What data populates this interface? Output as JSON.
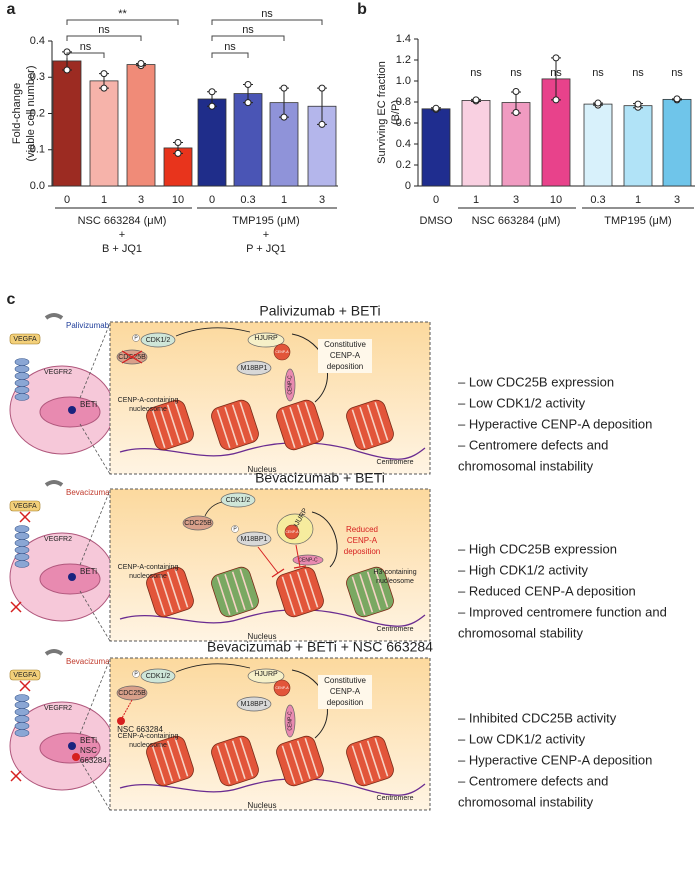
{
  "chart_data": [
    {
      "type": "bar",
      "label": "a",
      "ylabel": [
        "Fold-change",
        "(viable cell number)"
      ],
      "categories": [
        "0",
        "1",
        "3",
        "10",
        "0",
        "0.3",
        "1",
        "3"
      ],
      "values": [
        0.345,
        0.29,
        0.335,
        0.105,
        0.24,
        0.255,
        0.23,
        0.22
      ],
      "errors": [
        0.025,
        0.02,
        0.003,
        0.015,
        0.02,
        0.025,
        0.04,
        0.05
      ],
      "points": [
        [
          0.32,
          0.37
        ],
        [
          0.27,
          0.31
        ],
        [
          0.332,
          0.338
        ],
        [
          0.09,
          0.12
        ],
        [
          0.22,
          0.26
        ],
        [
          0.23,
          0.28
        ],
        [
          0.19,
          0.27
        ],
        [
          0.17,
          0.27
        ]
      ],
      "colors": [
        "#9c2b22",
        "#f6b3aa",
        "#f08b78",
        "#e8341c",
        "#1f2d8a",
        "#4a55b5",
        "#8f93d9",
        "#b4b6eb"
      ],
      "ylim": [
        0,
        0.4
      ],
      "yticks": [
        {
          "value": 0,
          "label": "0.0"
        },
        0.1,
        0.2,
        0.3,
        0.4
      ],
      "annotations": [
        "**",
        "ns",
        "ns",
        "ns",
        "ns",
        "ns"
      ],
      "groups": [
        [
          "NSC 663284 (μM)",
          "+",
          "B + JQ1"
        ],
        [
          "TMP195 (μM)",
          "+",
          "P + JQ1"
        ]
      ]
    },
    {
      "type": "bar",
      "label": "b",
      "ylabel": [
        "Surviving EC fraction",
        "(B/P)"
      ],
      "categories": [
        "0",
        "1",
        "3",
        "10",
        "0.3",
        "1",
        "3"
      ],
      "values": [
        0.735,
        0.815,
        0.795,
        1.02,
        0.78,
        0.765,
        0.825
      ],
      "errors": [
        0.01,
        0.01,
        0.1,
        0.2,
        0.01,
        0.02,
        0.005
      ],
      "points": [
        [
          0.73,
          0.74
        ],
        [
          0.81,
          0.82
        ],
        [
          0.7,
          0.9
        ],
        [
          0.82,
          1.22
        ],
        [
          0.77,
          0.79
        ],
        [
          0.75,
          0.78
        ],
        [
          0.82,
          0.83
        ]
      ],
      "colors": [
        "#1f2d8f",
        "#f9d0e1",
        "#f09bc1",
        "#e8428b",
        "#d8f1fb",
        "#b1e3f7",
        "#6fc5ea"
      ],
      "ylim": [
        0,
        1.4
      ],
      "yticks": [
        0,
        0.2,
        0.4,
        0.6,
        0.8,
        {
          "value": 1,
          "label": "1.0"
        },
        1.2,
        1.4
      ],
      "annotations": [
        "ns",
        "ns",
        "ns",
        "ns",
        "ns",
        "ns"
      ],
      "groups": [
        "DMSO",
        "NSC 663284 (μM)",
        "TMP195 (μM)"
      ]
    }
  ],
  "panel_c": {
    "label": "c",
    "rows": [
      {
        "title": "Palivizumab + BETi",
        "antibody": "Palivizumab",
        "ligand": "VEGFA",
        "receptor": "VEGFR2",
        "nucleus_labels": [
          "BETi"
        ],
        "box": {
          "cdc25b": "CDC25B",
          "phospho": "P",
          "cdk": "CDK1/2",
          "hjurp": "HJURP",
          "cenpa": "CENP-A",
          "m18bp1": "M18BP1",
          "cenpc": "CENP-C",
          "deposition": [
            "Constitutive",
            "CENP-A",
            "deposition"
          ],
          "nucleosome": [
            "CENP-A-containing",
            "nucleosome"
          ],
          "centromere": "Centromere",
          "nucleus": "Nucleus"
        },
        "bullets": [
          "– Low CDC25B expression",
          "– Low CDK1/2 activity",
          "– Hyperactive CENP-A deposition",
          "– Centromere defects and",
          "chromosomal instability"
        ]
      },
      {
        "title": "Bevacizumab + BETi",
        "antibody": "Bevacizumab",
        "ligand": "VEGFA",
        "receptor": "VEGFR2",
        "nucleus_labels": [
          "BETi"
        ],
        "box": {
          "cdc25b": "CDC25B",
          "phospho": "P",
          "cdk": "CDK1/2",
          "hjurp": "HJURP",
          "cenpa": "CENP-A",
          "m18bp1": "M18BP1",
          "cenpc": "CENP-C",
          "deposition": [
            "Reduced",
            "CENP-A",
            "deposition"
          ],
          "nucleosome": [
            "CENP-A-containing",
            "nucleosome"
          ],
          "h3": [
            "H3-containing",
            "nucleosome"
          ],
          "centromere": "Centromere",
          "nucleus": "Nucleus"
        },
        "bullets": [
          "– High CDC25B expression",
          "– High CDK1/2 activity",
          "– Reduced CENP-A deposition",
          "– Improved centromere function and",
          "chromosomal stability"
        ]
      },
      {
        "title": "Bevacizumab + BETi + NSC 663284",
        "antibody": "Bevacizumab",
        "ligand": "VEGFA",
        "receptor": "VEGFR2",
        "nucleus_labels": [
          "BETi",
          "NSC",
          "663284"
        ],
        "box": {
          "cdc25b": "CDC25B",
          "inhibitor": "NSC 663284",
          "phospho": "P",
          "cdk": "CDK1/2",
          "hjurp": "HJURP",
          "cenpa": "CENP-A",
          "m18bp1": "M18BP1",
          "cenpc": "CENP-C",
          "deposition": [
            "Constitutive",
            "CENP-A",
            "deposition"
          ],
          "nucleosome": [
            "CENP-A-containing",
            "nucleosome"
          ],
          "centromere": "Centromere",
          "nucleus": "Nucleus"
        },
        "bullets": [
          "– Inhibited CDC25B activity",
          "– Low CDK1/2 activity",
          "– Hyperactive CENP-A deposition",
          "– Centromere defects and",
          "chromosomal instability"
        ]
      }
    ]
  }
}
